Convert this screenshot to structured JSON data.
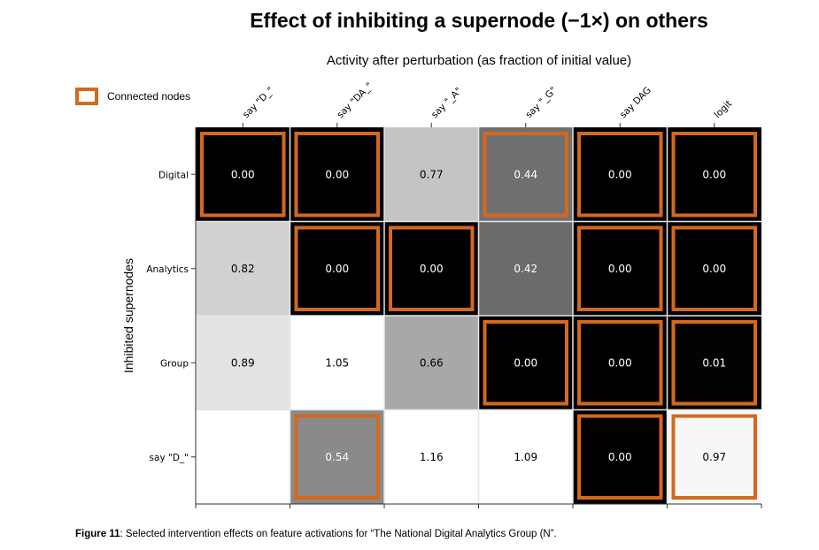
{
  "title": "Effect of inhibiting a supernode (−1×) on others",
  "subtitle": "Activity after perturbation (as fraction of initial value)",
  "legend": {
    "label": "Connected nodes",
    "color": "#d2691e"
  },
  "caption": {
    "figure": "Figure 11",
    "text": ": Selected intervention effects on feature activations for “The National Digital Analytics Group (N”."
  },
  "chart_data": {
    "type": "heatmap",
    "title": "Effect of inhibiting a supernode (−1×) on others",
    "subtitle": "Activity after perturbation (as fraction of initial value)",
    "ylabel": "Inhibited supernodes",
    "columns": [
      "say \"D_\"",
      "say \"DA_\"",
      "say \"_A\"",
      "say \"_G\"",
      "say DAG",
      "logit"
    ],
    "rows": [
      "Digital",
      "Analytics",
      "Group",
      "say \"D_\""
    ],
    "values": [
      [
        0.0,
        0.0,
        0.77,
        0.44,
        0.0,
        0.0
      ],
      [
        0.82,
        0.0,
        0.0,
        0.42,
        0.0,
        0.0
      ],
      [
        0.89,
        1.05,
        0.66,
        0.0,
        0.0,
        0.01
      ],
      [
        null,
        0.54,
        1.16,
        1.09,
        0.0,
        0.97
      ]
    ],
    "connected": [
      [
        true,
        true,
        false,
        true,
        true,
        true
      ],
      [
        false,
        true,
        true,
        false,
        true,
        true
      ],
      [
        false,
        false,
        false,
        true,
        true,
        true
      ],
      [
        false,
        true,
        false,
        false,
        true,
        true
      ]
    ],
    "value_range": [
      0,
      1
    ],
    "colormap": "gray (0 = black, 1 = white)",
    "legend": "Connected nodes",
    "grid": true
  }
}
